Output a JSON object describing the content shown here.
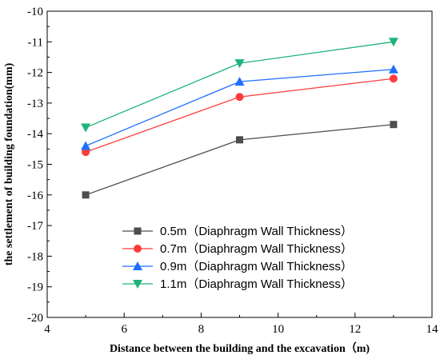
{
  "chart_data": {
    "type": "line",
    "xlabel": "Distance between the building and the excavation（m)",
    "ylabel": "the settlement of building foundation(mm)",
    "xlim": [
      4,
      14
    ],
    "ylim": [
      -20,
      -10
    ],
    "xticks": [
      "4",
      "6",
      "8",
      "10",
      "12",
      "14"
    ],
    "yticks": [
      "-10",
      "-11",
      "-12",
      "-13",
      "-14",
      "-15",
      "-16",
      "-17",
      "-18",
      "-19",
      "-20"
    ],
    "x": [
      5,
      9,
      13
    ],
    "legend_position": "bottom-right",
    "grid": false,
    "series": [
      {
        "name": "0.5m（Diaphragm Wall Thickness）",
        "color": "#4d4d4d",
        "marker": "square",
        "values": [
          -16.0,
          -14.2,
          -13.7
        ]
      },
      {
        "name": "0.7m（Diaphragm Wall Thickness）",
        "color": "#ff3b3b",
        "marker": "circle",
        "values": [
          -14.6,
          -12.8,
          -12.2
        ]
      },
      {
        "name": "0.9m（Diaphragm Wall Thickness）",
        "color": "#1f6fff",
        "marker": "triangle-up",
        "values": [
          -14.4,
          -12.3,
          -11.9
        ]
      },
      {
        "name": "1.1m（Diaphragm Wall Thickness）",
        "color": "#1fb37a",
        "marker": "triangle-down",
        "values": [
          -13.8,
          -11.7,
          -11.0
        ]
      }
    ]
  }
}
